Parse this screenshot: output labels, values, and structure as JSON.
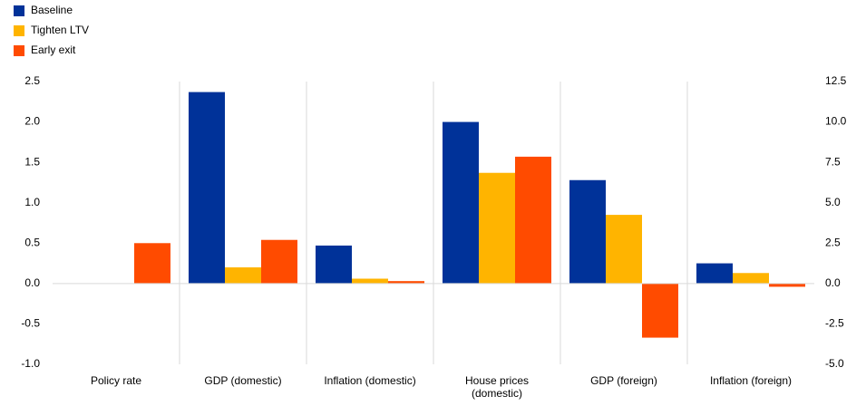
{
  "chart_data": {
    "type": "bar",
    "categories": [
      "Policy rate",
      "GDP (domestic)",
      "Inflation (domestic)",
      "House prices (domestic)",
      "GDP (foreign)",
      "Inflation (foreign)"
    ],
    "series": [
      {
        "name": "Baseline",
        "color": "#003299",
        "values": [
          0,
          2.37,
          0.47,
          2.0,
          1.28,
          0.25
        ]
      },
      {
        "name": "Tighten LTV",
        "color": "#FFB400",
        "values": [
          0,
          0.2,
          0.06,
          1.37,
          0.85,
          0.13
        ]
      },
      {
        "name": "Early exit",
        "color": "#FF4B00",
        "values": [
          0.5,
          0.54,
          0.03,
          1.57,
          -0.67,
          -0.04
        ]
      }
    ],
    "ylim": [
      -1.0,
      2.5
    ],
    "yticks": [
      {
        "value": -1.0,
        "label": "-1.0"
      },
      -0.5,
      {
        "value": 0,
        "label": "0.0"
      },
      0.5,
      {
        "value": 1.0,
        "label": "1.0"
      },
      1.5,
      {
        "value": 2.0,
        "label": "2.0"
      },
      2.5
    ],
    "y2lim": [
      -5.0,
      12.5
    ],
    "y2ticks": [
      {
        "value": -5.0,
        "label": "-5.0"
      },
      -2.5,
      {
        "value": 0,
        "label": "0.0"
      },
      2.5,
      {
        "value": 5.0,
        "label": "5.0"
      },
      7.5,
      {
        "value": 10.0,
        "label": "10.0"
      },
      12.5
    ],
    "legend": "top-left"
  }
}
